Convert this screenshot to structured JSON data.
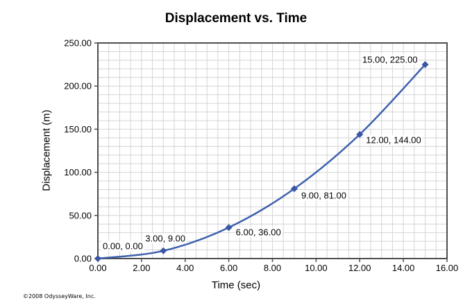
{
  "page": {
    "copyright": "©2008 OdysseyWare, Inc."
  },
  "chart_data": {
    "type": "line",
    "title": "Displacement vs. Time",
    "xlabel": "Time (sec)",
    "ylabel": "Displacement (m)",
    "x": [
      0,
      3,
      6,
      9,
      12,
      15
    ],
    "y": [
      0,
      9,
      36,
      81,
      144,
      225
    ],
    "point_labels": [
      "0.00, 0.00",
      "3.00, 9.00",
      "6.00, 36.00",
      "9.00, 81.00",
      "12.00, 144.00",
      "15.00, 225.00"
    ],
    "xlim": [
      0,
      16
    ],
    "ylim": [
      0,
      250
    ],
    "x_ticks": [
      "0.00",
      "2.00",
      "4.00",
      "6.00",
      "8.00",
      "10.00",
      "12.00",
      "14.00",
      "16.00"
    ],
    "y_ticks": [
      "0.00",
      "50.00",
      "100.00",
      "150.00",
      "200.00",
      "250.00"
    ],
    "x_minor_step": 0.5,
    "y_minor_step": 10,
    "grid": "on",
    "legend": "none",
    "colors": {
      "line": "#3E60AE",
      "marker": "#3A56A4",
      "grid": "#D4D4D4",
      "axis": "#4D4D4D",
      "text": "#000000",
      "background": "#FFFFFF"
    }
  }
}
